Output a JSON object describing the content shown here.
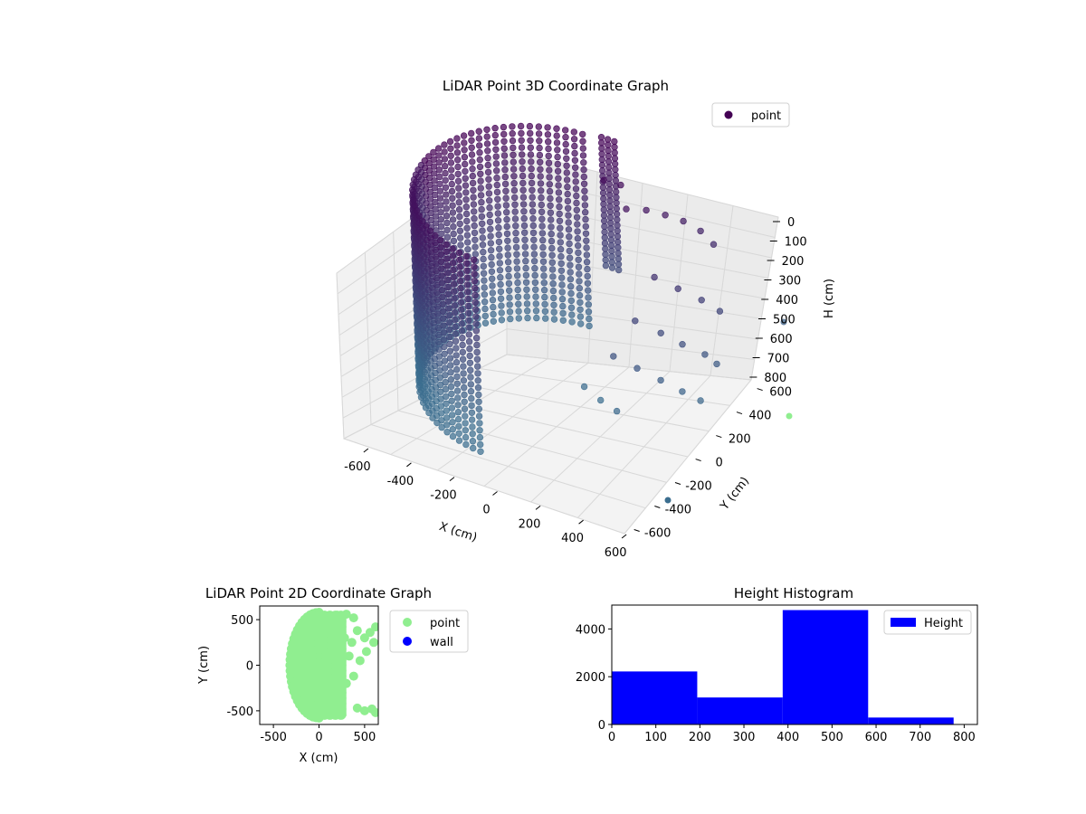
{
  "chart_data": [
    {
      "type": "scatter",
      "projection": "3d",
      "title": "LiDAR Point 3D Coordinate Graph",
      "xlabel": "X (cm)",
      "ylabel": "Y (cm)",
      "zlabel": "H (cm)",
      "xlim": [
        -650,
        650
      ],
      "ylim": [
        -650,
        650
      ],
      "zlim": [
        820,
        0
      ],
      "xticks": [
        "-600",
        "-400",
        "-200",
        "0",
        "200",
        "400",
        "600"
      ],
      "yticks": [
        "-600",
        "-400",
        "-200",
        "0",
        "200",
        "400",
        "600"
      ],
      "zticks": [
        "0",
        "100",
        "200",
        "300",
        "400",
        "500",
        "600",
        "700",
        "800"
      ],
      "legend": {
        "entries": [
          "point"
        ],
        "placement": "top-right"
      },
      "grid": true,
      "colormap": {
        "low": "#440154",
        "high": "#3b6e8f"
      },
      "series": [
        {
          "name": "point",
          "shape": "half-cylinder arc with scattered side points",
          "arc": {
            "radius": 540,
            "angle_start_deg": 95,
            "angle_end_deg": 265,
            "h_min": 0,
            "h_max": 780
          },
          "scatter_extra": [
            [
              240,
              340,
              120
            ],
            [
              300,
              410,
              140
            ],
            [
              360,
              470,
              170
            ],
            [
              420,
              520,
              200
            ],
            [
              480,
              560,
              240
            ],
            [
              520,
              600,
              300
            ],
            [
              380,
              300,
              330
            ],
            [
              460,
              360,
              380
            ],
            [
              540,
              420,
              430
            ],
            [
              600,
              470,
              480
            ],
            [
              330,
              200,
              470
            ],
            [
              420,
              260,
              520
            ],
            [
              500,
              300,
              560
            ],
            [
              580,
              350,
              600
            ],
            [
              620,
              380,
              640
            ],
            [
              270,
              100,
              580
            ],
            [
              360,
              140,
              620
            ],
            [
              450,
              180,
              660
            ],
            [
              530,
              220,
              700
            ],
            [
              600,
              250,
              730
            ],
            [
              200,
              -50,
              650
            ],
            [
              260,
              -20,
              700
            ],
            [
              320,
              10,
              740
            ],
            [
              180,
              420,
              80
            ],
            [
              120,
              380,
              60
            ]
          ]
        }
      ]
    },
    {
      "type": "scatter",
      "title": "LiDAR Point 2D Coordinate Graph",
      "xlabel": "X (cm)",
      "ylabel": "Y (cm)",
      "xlim": [
        -650,
        650
      ],
      "ylim": [
        -650,
        650
      ],
      "xticks": [
        -500,
        0,
        500
      ],
      "yticks": [
        -500,
        0,
        500
      ],
      "legend": {
        "entries": [
          "point",
          "wall"
        ],
        "placement": "outside-right"
      },
      "series": [
        {
          "name": "point",
          "color": "#90ee90",
          "shape": "filled half-disc",
          "radius": 580,
          "angle_start_deg": 90,
          "angle_end_deg": 270,
          "extra": [
            [
              200,
              550
            ],
            [
              300,
              560
            ],
            [
              380,
              520
            ],
            [
              420,
              380
            ],
            [
              500,
              300
            ],
            [
              560,
              360
            ],
            [
              620,
              420
            ],
            [
              600,
              250
            ],
            [
              520,
              150
            ],
            [
              450,
              50
            ],
            [
              380,
              -120
            ],
            [
              300,
              -200
            ],
            [
              420,
              -470
            ],
            [
              500,
              -500
            ],
            [
              580,
              -480
            ],
            [
              620,
              -520
            ],
            [
              250,
              -300
            ],
            [
              330,
              100
            ],
            [
              280,
              300
            ],
            [
              360,
              250
            ]
          ]
        },
        {
          "name": "wall",
          "color": "#0000ff",
          "values": []
        }
      ]
    },
    {
      "type": "bar",
      "subtype": "histogram",
      "title": "Height Histogram",
      "xlabel": "",
      "ylabel": "",
      "xlim": [
        0,
        830
      ],
      "ylim": [
        0,
        5000
      ],
      "xticks": [
        0,
        100,
        200,
        300,
        400,
        500,
        600,
        700,
        800
      ],
      "yticks": [
        0,
        2000,
        4000
      ],
      "legend": {
        "entries": [
          "Height"
        ],
        "placement": "top-right"
      },
      "series": [
        {
          "name": "Height",
          "color": "#0000ff",
          "bins": [
            [
              0,
              194,
              2220
            ],
            [
              194,
              388,
              1130
            ],
            [
              388,
              582,
              4790
            ],
            [
              582,
              776,
              290
            ]
          ]
        }
      ]
    }
  ]
}
